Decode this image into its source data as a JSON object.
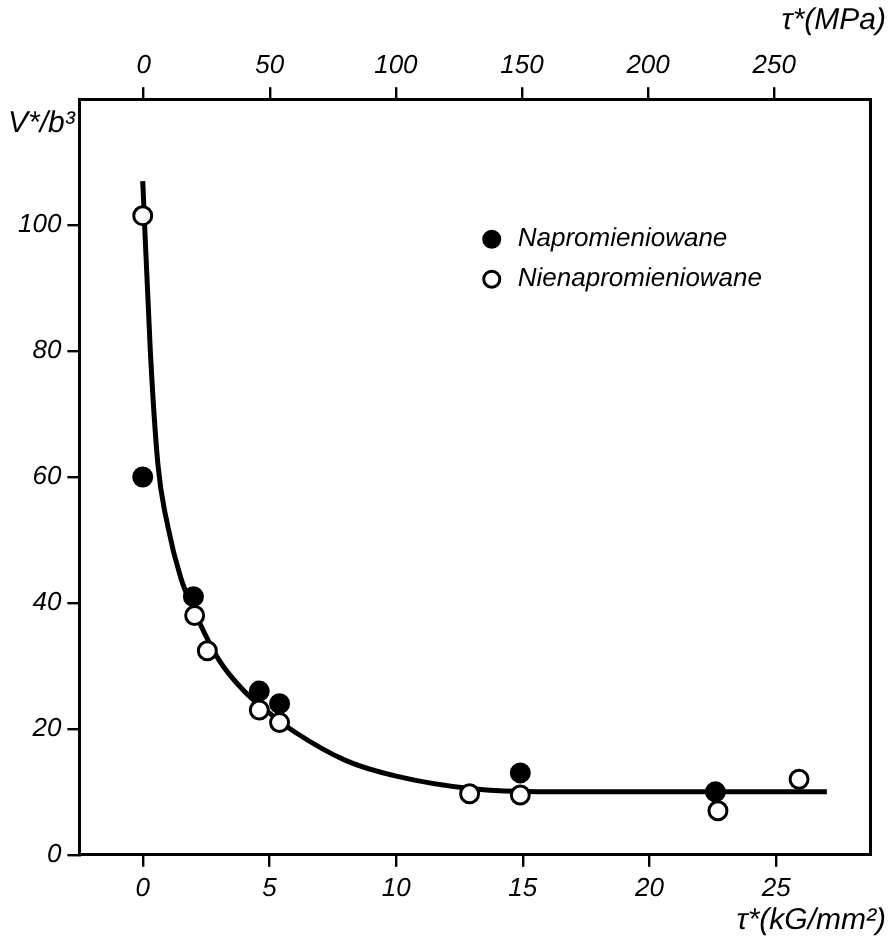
{
  "chart_data": {
    "type": "scatter",
    "xlabel": "τ*(kG/mm²)",
    "x2label": "τ*(MPa)",
    "ylabel": "V*/b³",
    "xlim": [
      -2.5,
      28.7
    ],
    "xticks": [
      0,
      5,
      10,
      15,
      20,
      25
    ],
    "x2lim": [
      -25.5,
      288
    ],
    "x2ticks": [
      0,
      50,
      100,
      150,
      200,
      250
    ],
    "ylim": [
      0,
      120
    ],
    "yticks": [
      0,
      20,
      40,
      60,
      80,
      100
    ],
    "grid": false,
    "legend": "top right",
    "marker": "circle",
    "series": [
      {
        "name": "Napromieniowane",
        "color": "#000000",
        "x": [
          0,
          2,
          4.6,
          5.4,
          14.9,
          22.6
        ],
        "values": [
          60,
          41,
          26,
          24,
          13,
          10
        ]
      },
      {
        "name": "Nienapromieniowane",
        "color": "#ffffff",
        "x": [
          0,
          2.05,
          2.55,
          4.6,
          5.4,
          12.9,
          14.9,
          22.7,
          25.9
        ],
        "values": [
          101.5,
          38,
          32.4,
          23,
          21,
          9.7,
          9.5,
          7,
          12
        ]
      },
      {
        "type": "line",
        "color": "#000000",
        "marker": "none",
        "x": [
          0,
          0.3,
          0.6,
          1,
          1.5,
          2,
          3,
          4,
          5,
          6,
          8,
          10,
          13,
          16,
          20,
          27
        ],
        "values": [
          107,
          80,
          62,
          52,
          44,
          39,
          31,
          26,
          22.5,
          19.5,
          15,
          12.5,
          10.5,
          10,
          10,
          10
        ]
      }
    ]
  }
}
